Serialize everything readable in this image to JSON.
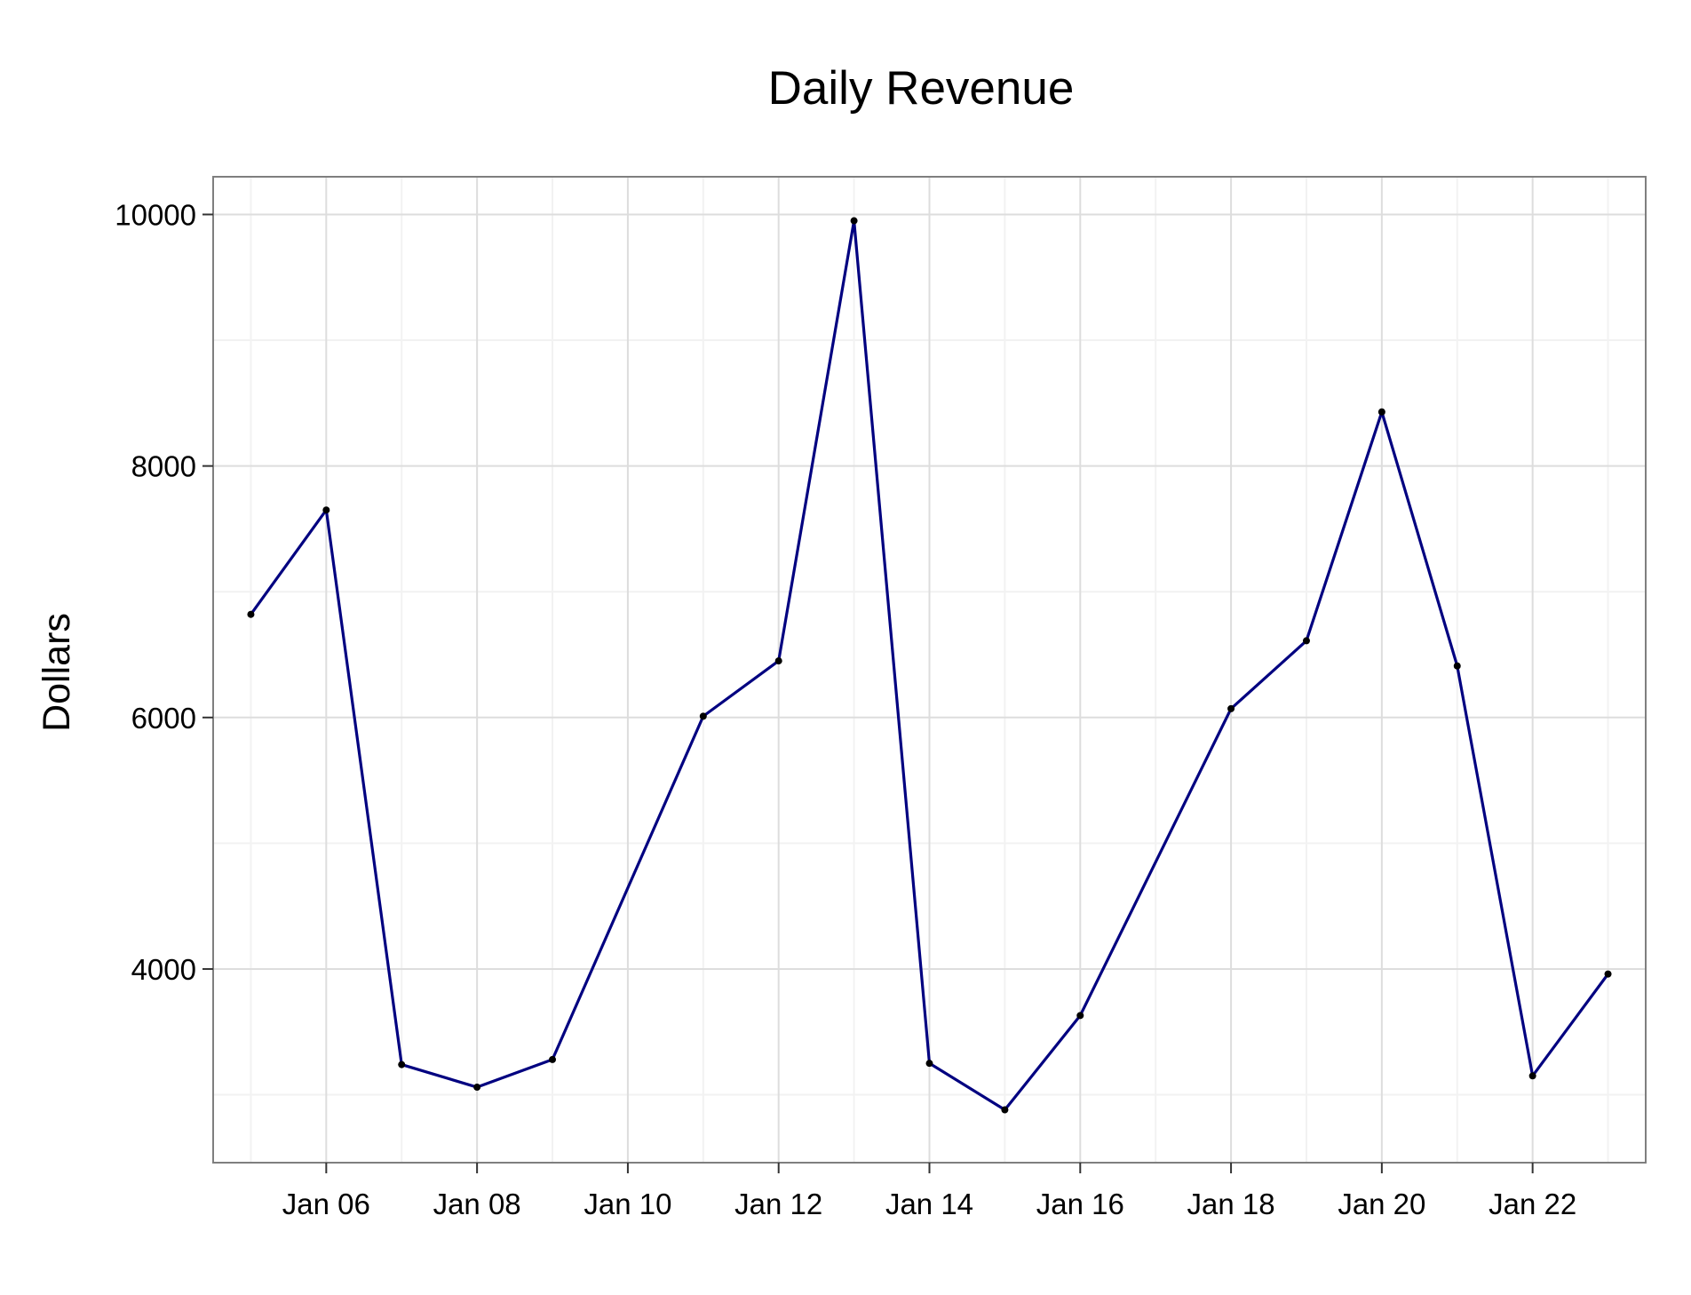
{
  "chart_data": {
    "type": "line",
    "title": "Daily Revenue",
    "xlabel": "",
    "ylabel": "Dollars",
    "x": [
      "Jan 05",
      "Jan 06",
      "Jan 07",
      "Jan 08",
      "Jan 09",
      "Jan 10",
      "Jan 11",
      "Jan 12",
      "Jan 13",
      "Jan 14",
      "Jan 15",
      "Jan 16",
      "Jan 17",
      "Jan 18",
      "Jan 19",
      "Jan 20",
      "Jan 21",
      "Jan 22",
      "Jan 23"
    ],
    "x_tick_labels": [
      "Jan 06",
      "Jan 08",
      "Jan 10",
      "Jan 12",
      "Jan 14",
      "Jan 16",
      "Jan 18",
      "Jan 20",
      "Jan 22"
    ],
    "y_tick_labels": [
      "4000",
      "6000",
      "8000",
      "10000"
    ],
    "series": [
      {
        "values": [
          6820,
          7650,
          3240,
          3060,
          3280,
          null,
          6010,
          6450,
          9950,
          3250,
          2880,
          3630,
          null,
          6070,
          6610,
          8430,
          6410,
          3150,
          3960
        ]
      }
    ],
    "ylim": [
      2460,
      10300
    ],
    "xlim": [
      "Jan 04 12:00",
      "Jan 23 12:00"
    ],
    "grid": true,
    "colors": {
      "line": "#000080",
      "points": "#000000",
      "grid": "#dddddd",
      "grid_minor": "#f2f2f2",
      "border": "#7f7f7f"
    }
  }
}
